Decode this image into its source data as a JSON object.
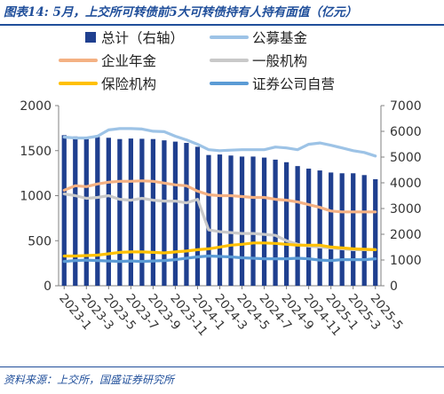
{
  "title": "图表14: 5月，上交所可转债前5大可转债持有人持有面值（亿元）",
  "source": "资料来源：上交所，国盛证券研究所",
  "chart_data": {
    "type": "bar",
    "x": [
      "2023-1",
      "2023-2",
      "2023-3",
      "2023-4",
      "2023-5",
      "2023-6",
      "2023-7",
      "2023-8",
      "2023-9",
      "2023-10",
      "2023-11",
      "2023-12",
      "2024-1",
      "2024-2",
      "2024-3",
      "2024-4",
      "2024-5",
      "2024-6",
      "2024-7",
      "2024-8",
      "2024-9",
      "2024-10",
      "2024-11",
      "2024-12",
      "2025-1",
      "2025-2",
      "2025-3",
      "2025-4",
      "2025-5"
    ],
    "xticks": [
      "2023-1",
      "2023-3",
      "2023-5",
      "2023-7",
      "2023-9",
      "2023-11",
      "2024-1",
      "2024-3",
      "2024-5",
      "2024-7",
      "2024-9",
      "2024-11",
      "2025-1",
      "2025-3",
      "2025-5"
    ],
    "ylim_left": [
      0,
      2000
    ],
    "yticks_left": [
      "0",
      "500",
      "1000",
      "1500",
      "2000"
    ],
    "ylim_right": [
      0,
      7000
    ],
    "yticks_right": [
      "0",
      "1000",
      "2000",
      "3000",
      "4000",
      "5000",
      "6000",
      "7000"
    ],
    "legend_position": "top",
    "series": [
      {
        "name": "总计（右轴）",
        "kind": "bar",
        "axis": "right",
        "color": "#1f3f8f",
        "values": [
          5850,
          5800,
          5700,
          5780,
          5750,
          5700,
          5720,
          5710,
          5700,
          5650,
          5600,
          5550,
          5400,
          5080,
          5100,
          5060,
          5020,
          5020,
          4980,
          4900,
          4800,
          4650,
          4550,
          4480,
          4400,
          4370,
          4370,
          4300,
          4140
        ]
      },
      {
        "name": "公募基金",
        "kind": "line",
        "axis": "left",
        "color": "#9dc3e6",
        "values": [
          1650,
          1640,
          1640,
          1660,
          1730,
          1745,
          1745,
          1740,
          1715,
          1710,
          1660,
          1620,
          1570,
          1510,
          1500,
          1505,
          1510,
          1510,
          1510,
          1540,
          1530,
          1510,
          1570,
          1585,
          1560,
          1530,
          1500,
          1480,
          1440
        ]
      },
      {
        "name": "一般机构",
        "kind": "line",
        "axis": "left",
        "color": "#c9c9c9",
        "values": [
          1020,
          1000,
          970,
          980,
          1000,
          960,
          950,
          970,
          950,
          940,
          940,
          920,
          960,
          620,
          600,
          590,
          580,
          580,
          570,
          560,
          500,
          460,
          440,
          430,
          420,
          410,
          400,
          400,
          400
        ]
      },
      {
        "name": "企业年金",
        "kind": "line",
        "axis": "left",
        "color": "#f4b183",
        "values": [
          1060,
          1110,
          1100,
          1130,
          1150,
          1160,
          1160,
          1165,
          1160,
          1140,
          1120,
          1110,
          1050,
          1010,
          1000,
          1000,
          990,
          980,
          980,
          960,
          950,
          930,
          900,
          870,
          830,
          820,
          820,
          820,
          820
        ]
      },
      {
        "name": "保险机构",
        "kind": "line",
        "axis": "left",
        "color": "#ffc000",
        "values": [
          330,
          330,
          335,
          340,
          355,
          370,
          375,
          375,
          370,
          365,
          375,
          385,
          400,
          410,
          430,
          450,
          460,
          475,
          475,
          470,
          460,
          450,
          450,
          450,
          430,
          420,
          410,
          405,
          400
        ]
      },
      {
        "name": "证券公司自营",
        "kind": "line",
        "axis": "left",
        "color": "#5b9bd5",
        "values": [
          270,
          280,
          285,
          280,
          275,
          270,
          275,
          270,
          275,
          280,
          290,
          305,
          320,
          330,
          325,
          320,
          310,
          305,
          300,
          300,
          300,
          305,
          300,
          285,
          280,
          290,
          290,
          290,
          300
        ]
      }
    ]
  }
}
